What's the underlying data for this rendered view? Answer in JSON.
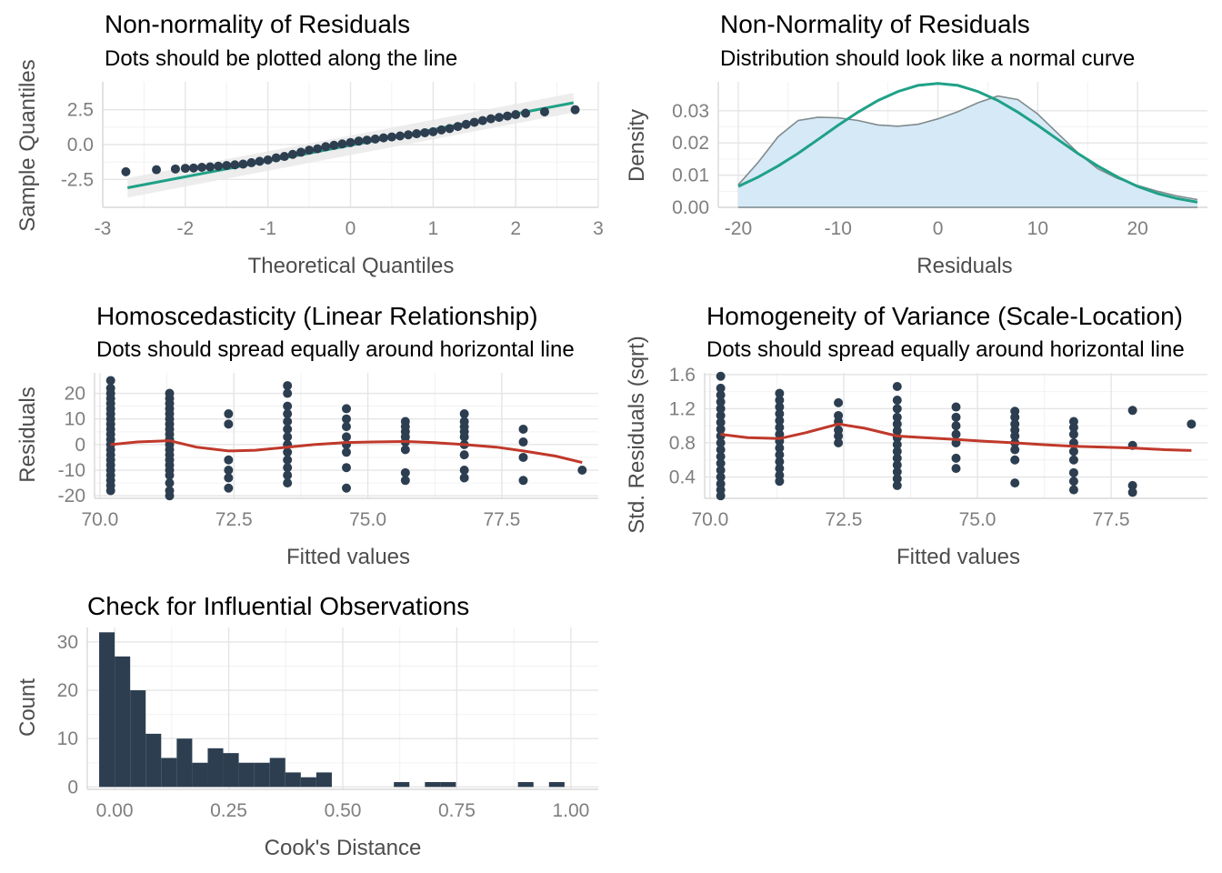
{
  "colors": {
    "points": "#2c3e50",
    "normal_line": "#1fa187",
    "loess_line": "#c0392b",
    "density_fill": "#d6e9f7",
    "density_line": "#7f8c8d",
    "band": "#e8e8e8",
    "bars": "#2c3e50"
  },
  "chart_data": [
    {
      "id": "qq",
      "type": "scatter",
      "title": "Non-normality of Residuals",
      "subtitle": "Dots should be plotted along the line",
      "xlabel": "Theoretical Quantiles",
      "ylabel": "Sample Quantiles",
      "xlim": [
        -3,
        3
      ],
      "ylim": [
        -4.5,
        4.5
      ],
      "xticks": [
        -3,
        -2,
        -1,
        0,
        1,
        2,
        3
      ],
      "xticklabels": [
        "-3",
        "-2",
        "-1",
        "0",
        "1",
        "2",
        "3"
      ],
      "yticks": [
        -2.5,
        0,
        2.5
      ],
      "yticklabels": [
        "-2.5",
        "0.0",
        "2.5"
      ],
      "grid": true,
      "reference_line": {
        "x": [
          -2.7,
          2.7
        ],
        "y": [
          -3.1,
          3.0
        ]
      },
      "points": {
        "x": [
          -2.72,
          -2.35,
          -2.12,
          -2.0,
          -1.9,
          -1.8,
          -1.7,
          -1.6,
          -1.5,
          -1.4,
          -1.3,
          -1.2,
          -1.1,
          -1.0,
          -0.9,
          -0.8,
          -0.7,
          -0.6,
          -0.5,
          -0.4,
          -0.3,
          -0.2,
          -0.1,
          0.0,
          0.1,
          0.2,
          0.3,
          0.4,
          0.5,
          0.6,
          0.7,
          0.8,
          0.9,
          1.0,
          1.1,
          1.2,
          1.3,
          1.4,
          1.5,
          1.6,
          1.7,
          1.8,
          1.9,
          2.0,
          2.12,
          2.35,
          2.72
        ],
        "y": [
          -1.95,
          -1.8,
          -1.75,
          -1.7,
          -1.68,
          -1.63,
          -1.6,
          -1.55,
          -1.5,
          -1.45,
          -1.4,
          -1.3,
          -1.2,
          -1.1,
          -0.95,
          -0.85,
          -0.7,
          -0.55,
          -0.4,
          -0.3,
          -0.15,
          -0.05,
          0.05,
          0.15,
          0.25,
          0.32,
          0.4,
          0.48,
          0.55,
          0.62,
          0.7,
          0.78,
          0.85,
          0.92,
          1.05,
          1.15,
          1.3,
          1.45,
          1.6,
          1.72,
          1.85,
          1.95,
          2.05,
          2.15,
          2.25,
          2.35,
          2.5
        ]
      }
    },
    {
      "id": "density",
      "type": "area",
      "title": "Non-Normality of Residuals",
      "subtitle": "Distribution should look like a normal curve",
      "xlabel": "Residuals",
      "ylabel": "Density",
      "xlim": [
        -22,
        27
      ],
      "ylim": [
        0,
        0.039
      ],
      "xticks": [
        -20,
        -10,
        0,
        10,
        20
      ],
      "xticklabels": [
        "-20",
        "-10",
        "0",
        "10",
        "20"
      ],
      "yticks": [
        0,
        0.01,
        0.02,
        0.03
      ],
      "yticklabels": [
        "0.00",
        "0.01",
        "0.02",
        "0.03"
      ],
      "grid": true,
      "density": {
        "x": [
          -20,
          -18,
          -16,
          -14,
          -12,
          -10,
          -8,
          -6,
          -4,
          -2,
          0,
          2,
          4,
          6,
          8,
          10,
          12,
          14,
          16,
          18,
          20,
          22,
          24,
          26
        ],
        "y": [
          0.007,
          0.014,
          0.022,
          0.027,
          0.028,
          0.0278,
          0.027,
          0.0256,
          0.0252,
          0.0258,
          0.0275,
          0.0297,
          0.0325,
          0.0346,
          0.0335,
          0.029,
          0.023,
          0.017,
          0.012,
          0.009,
          0.0068,
          0.005,
          0.0035,
          0.0024
        ]
      },
      "normal": {
        "x": [
          -20,
          -18,
          -16,
          -14,
          -12,
          -10,
          -8,
          -6,
          -4,
          -2,
          0,
          2,
          4,
          6,
          8,
          10,
          12,
          14,
          16,
          18,
          20,
          22,
          24,
          26
        ],
        "y": [
          0.0065,
          0.0094,
          0.0129,
          0.0168,
          0.0211,
          0.0255,
          0.0296,
          0.0332,
          0.036,
          0.0379,
          0.0385,
          0.0379,
          0.036,
          0.0332,
          0.0296,
          0.0255,
          0.0211,
          0.0168,
          0.0129,
          0.0094,
          0.0065,
          0.0043,
          0.0027,
          0.0016
        ]
      }
    },
    {
      "id": "homosced",
      "type": "scatter",
      "title": "Homoscedasticity (Linear Relationship)",
      "subtitle": "Dots should spread equally around horizontal line",
      "xlabel": "Fitted values",
      "ylabel": "Residuals",
      "xlim": [
        69.9,
        79.3
      ],
      "ylim": [
        -21,
        28
      ],
      "xticks": [
        70,
        72.5,
        75,
        77.5
      ],
      "xticklabels": [
        "70.0",
        "72.5",
        "75.0",
        "77.5"
      ],
      "yticks": [
        -20,
        -10,
        0,
        10,
        20
      ],
      "yticklabels": [
        "-20",
        "-10",
        "0",
        "10",
        "20"
      ],
      "grid": true,
      "columns": [
        {
          "x": 70.2,
          "y": [
            -18,
            -16,
            -14,
            -12,
            -10,
            -8,
            -6,
            -4,
            -2,
            0,
            2,
            4,
            6,
            8,
            10,
            12,
            14,
            16,
            18,
            20,
            22,
            25
          ]
        },
        {
          "x": 71.3,
          "y": [
            -20,
            -18,
            -15,
            -12,
            -10,
            -8,
            -6,
            -4,
            -2,
            0,
            2,
            4,
            6,
            8,
            10,
            12,
            14,
            16,
            18,
            20
          ]
        },
        {
          "x": 72.4,
          "y": [
            -17,
            -13,
            -10,
            -6,
            8,
            12
          ]
        },
        {
          "x": 73.5,
          "y": [
            -15,
            -12,
            -9,
            -6,
            -3,
            0,
            3,
            6,
            9,
            12,
            15,
            20,
            23
          ]
        },
        {
          "x": 74.6,
          "y": [
            -17,
            -9,
            -3,
            0,
            3,
            7,
            10,
            14
          ]
        },
        {
          "x": 75.7,
          "y": [
            -14,
            -11,
            -2,
            1,
            3,
            5,
            7,
            9
          ]
        },
        {
          "x": 76.8,
          "y": [
            -13,
            -10,
            -4,
            0,
            3,
            5,
            7,
            9,
            12
          ]
        },
        {
          "x": 77.9,
          "y": [
            -14,
            -5,
            1,
            6
          ]
        },
        {
          "x": 79.0,
          "y": [
            -10
          ]
        }
      ],
      "loess": {
        "x": [
          70.2,
          70.7,
          71.3,
          71.8,
          72.4,
          72.9,
          73.5,
          74.0,
          74.6,
          75.1,
          75.7,
          76.2,
          76.8,
          77.4,
          77.9,
          78.5,
          79.0
        ],
        "y": [
          0,
          1,
          1.5,
          -1,
          -2.5,
          -2.2,
          -1,
          0,
          0.8,
          1,
          1.2,
          0.8,
          0,
          -1,
          -2.5,
          -4.5,
          -7
        ]
      }
    },
    {
      "id": "scaleloc",
      "type": "scatter",
      "title": "Homogeneity of Variance (Scale-Location)",
      "subtitle": "Dots should spread equally around horizontal line",
      "xlabel": "Fitted values",
      "ylabel": "Std. Residuals (sqrt)",
      "xlim": [
        69.9,
        79.3
      ],
      "ylim": [
        0.15,
        1.62
      ],
      "xticks": [
        70,
        72.5,
        75,
        77.5
      ],
      "xticklabels": [
        "70.0",
        "72.5",
        "75.0",
        "77.5"
      ],
      "yticks": [
        0.4,
        0.8,
        1.2,
        1.6
      ],
      "yticklabels": [
        "0.4",
        "0.8",
        "1.2",
        "1.6"
      ],
      "grid": true,
      "columns": [
        {
          "x": 70.2,
          "y": [
            0.18,
            0.25,
            0.32,
            0.4,
            0.48,
            0.56,
            0.64,
            0.72,
            0.8,
            0.88,
            0.96,
            1.04,
            1.12,
            1.2,
            1.28,
            1.36,
            1.44,
            1.58
          ]
        },
        {
          "x": 71.3,
          "y": [
            0.35,
            0.42,
            0.5,
            0.58,
            0.66,
            0.74,
            0.82,
            0.9,
            0.98,
            1.06,
            1.14,
            1.22,
            1.3,
            1.38
          ]
        },
        {
          "x": 72.4,
          "y": [
            0.8,
            0.88,
            0.95,
            1.05,
            1.12,
            1.27
          ]
        },
        {
          "x": 73.5,
          "y": [
            0.3,
            0.38,
            0.46,
            0.54,
            0.62,
            0.7,
            0.78,
            0.86,
            0.94,
            1.02,
            1.1,
            1.2,
            1.3,
            1.46
          ]
        },
        {
          "x": 74.6,
          "y": [
            0.5,
            0.62,
            0.8,
            0.9,
            1.0,
            1.1,
            1.22
          ]
        },
        {
          "x": 75.7,
          "y": [
            0.33,
            0.6,
            0.72,
            0.8,
            0.88,
            0.95,
            1.02,
            1.1,
            1.17
          ]
        },
        {
          "x": 76.8,
          "y": [
            0.25,
            0.35,
            0.45,
            0.6,
            0.7,
            0.8,
            0.9,
            0.98,
            1.05
          ]
        },
        {
          "x": 77.9,
          "y": [
            0.22,
            0.3,
            0.77,
            1.18
          ]
        },
        {
          "x": 79.0,
          "y": [
            1.02
          ]
        }
      ],
      "loess": {
        "x": [
          70.2,
          70.7,
          71.3,
          71.8,
          72.4,
          72.9,
          73.5,
          74.0,
          74.6,
          75.1,
          75.7,
          76.2,
          76.8,
          77.4,
          77.9,
          78.5,
          79.0
        ],
        "y": [
          0.9,
          0.86,
          0.85,
          0.92,
          1.02,
          0.97,
          0.88,
          0.86,
          0.84,
          0.82,
          0.8,
          0.78,
          0.76,
          0.75,
          0.74,
          0.72,
          0.71
        ]
      }
    },
    {
      "id": "cooks",
      "type": "bar",
      "title": "Check for Influential Observations",
      "subtitle": "",
      "xlabel": "Cook's Distance",
      "ylabel": "Count",
      "xlim": [
        -0.06,
        1.06
      ],
      "ylim": [
        -0.5,
        33
      ],
      "xticks": [
        0,
        0.25,
        0.5,
        0.75,
        1.0
      ],
      "xticklabels": [
        "0.00",
        "0.25",
        "0.50",
        "0.75",
        "1.00"
      ],
      "yticks": [
        0,
        10,
        20,
        30
      ],
      "yticklabels": [
        "0",
        "10",
        "20",
        "30"
      ],
      "grid": true,
      "bin_width": 0.034,
      "bins": [
        {
          "x": -0.017,
          "count": 32
        },
        {
          "x": 0.017,
          "count": 27
        },
        {
          "x": 0.051,
          "count": 20
        },
        {
          "x": 0.085,
          "count": 11
        },
        {
          "x": 0.119,
          "count": 6
        },
        {
          "x": 0.153,
          "count": 10
        },
        {
          "x": 0.187,
          "count": 5
        },
        {
          "x": 0.221,
          "count": 8
        },
        {
          "x": 0.255,
          "count": 7
        },
        {
          "x": 0.289,
          "count": 5
        },
        {
          "x": 0.323,
          "count": 5
        },
        {
          "x": 0.357,
          "count": 6
        },
        {
          "x": 0.391,
          "count": 3
        },
        {
          "x": 0.425,
          "count": 2
        },
        {
          "x": 0.459,
          "count": 3
        },
        {
          "x": 0.629,
          "count": 1
        },
        {
          "x": 0.697,
          "count": 1
        },
        {
          "x": 0.731,
          "count": 1
        },
        {
          "x": 0.901,
          "count": 1
        },
        {
          "x": 0.969,
          "count": 1
        }
      ]
    }
  ]
}
